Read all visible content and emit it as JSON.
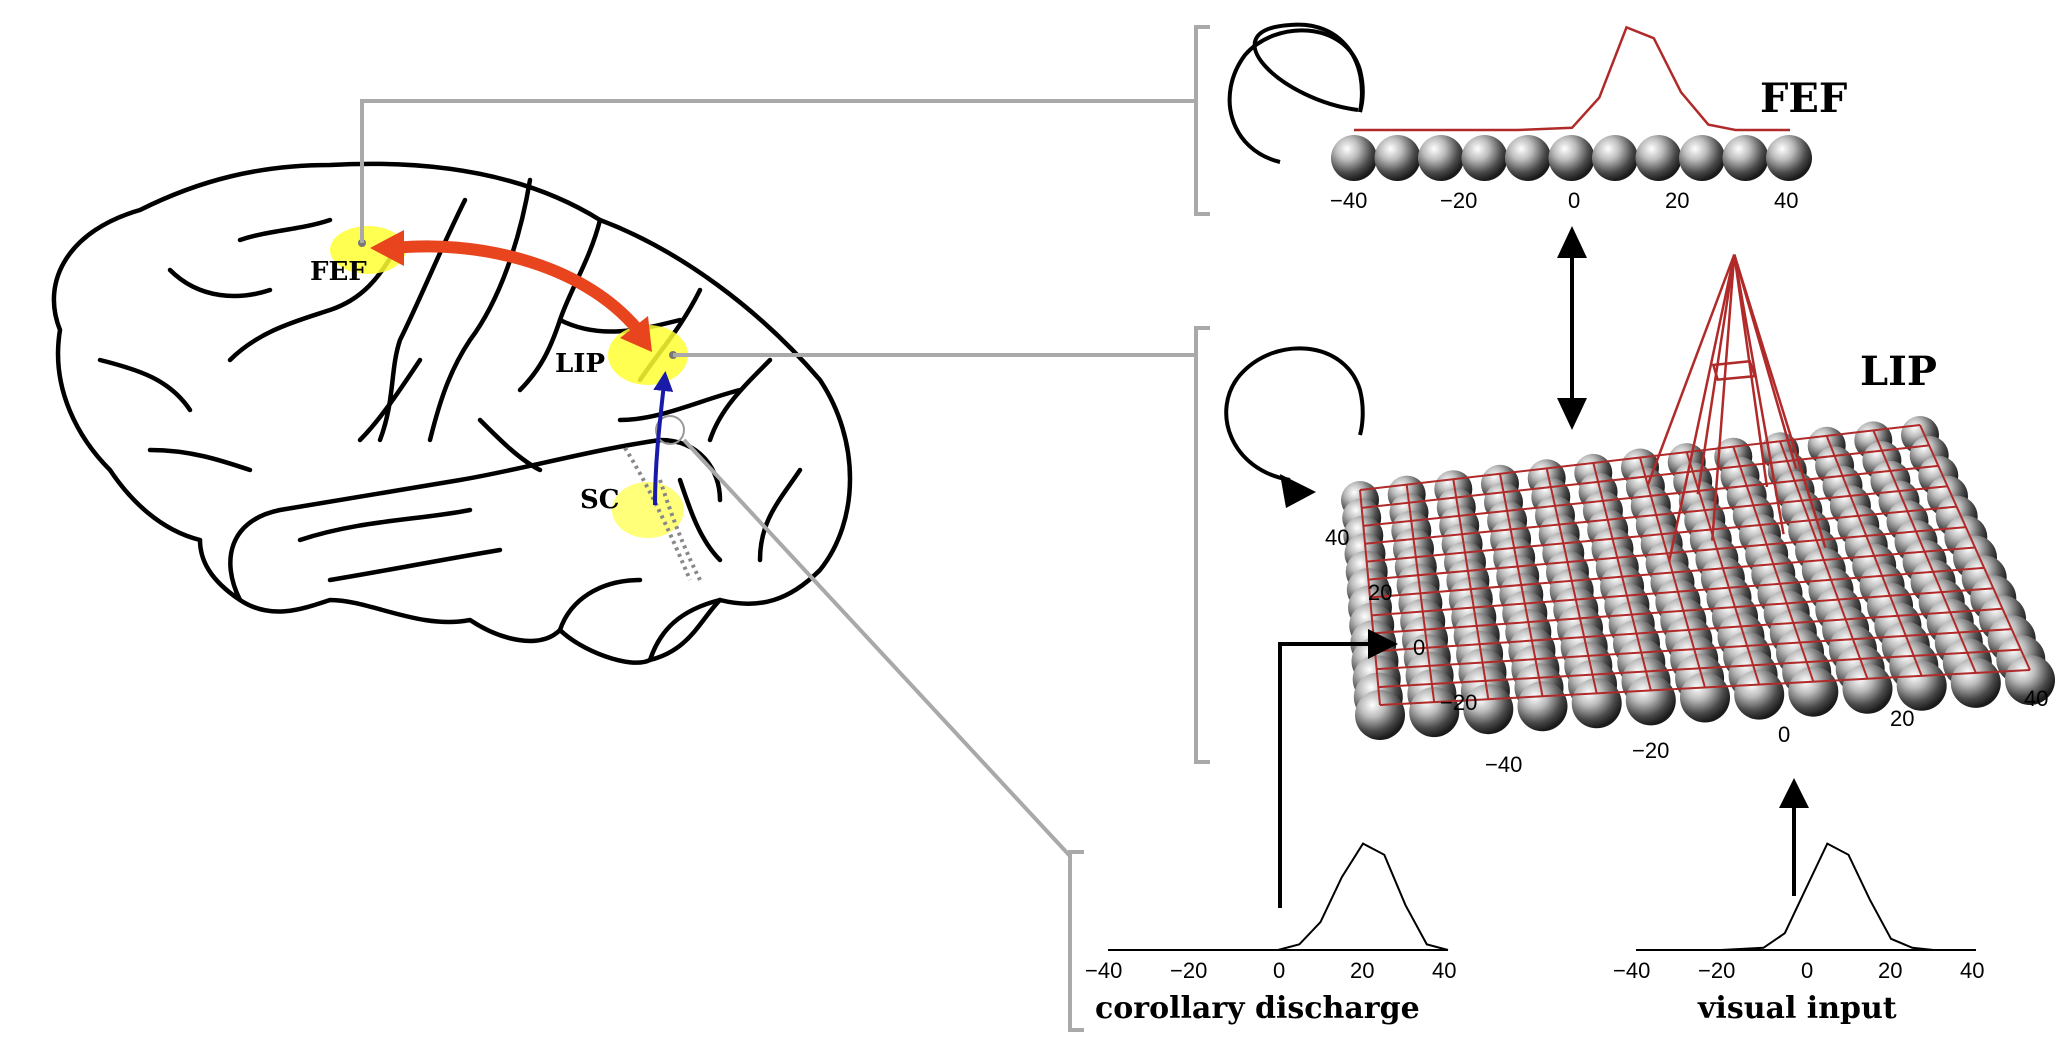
{
  "brain": {
    "regions": [
      {
        "label": "FEF"
      },
      {
        "label": "LIP"
      },
      {
        "label": "SC"
      }
    ],
    "highlight_color": "#ffff33",
    "fef_lip_arrow_color": "#e8451e",
    "sc_lip_arrow_color": "#1a1aa8"
  },
  "panels": {
    "fef": {
      "title": "FEF",
      "ticks": [
        "−40",
        "−20",
        "0",
        "20",
        "40"
      ]
    },
    "lip": {
      "title": "LIP",
      "x_ticks": [
        "−40",
        "−20",
        "0",
        "20",
        "40"
      ],
      "y_ticks": [
        "−40",
        "−20",
        "0",
        "20",
        "40"
      ],
      "surface_color": "#b02a2a"
    },
    "corollary": {
      "caption": "corollary discharge",
      "ticks": [
        "−40",
        "−20",
        "0",
        "20",
        "40"
      ]
    },
    "visual": {
      "caption": "visual input",
      "ticks": [
        "−40",
        "−20",
        "0",
        "20",
        "40"
      ]
    }
  },
  "chart_data": [
    {
      "type": "line",
      "name": "fef-activity",
      "x": [
        -40,
        -30,
        -20,
        -10,
        0,
        5,
        10,
        15,
        20,
        25,
        30,
        40
      ],
      "y": [
        0,
        0,
        0,
        0,
        0.02,
        0.3,
        0.95,
        0.85,
        0.35,
        0.05,
        0,
        0
      ]
    },
    {
      "type": "line",
      "name": "corollary-discharge",
      "x": [
        -40,
        -30,
        -20,
        -10,
        0,
        5,
        10,
        15,
        20,
        25,
        30,
        35,
        40
      ],
      "y": [
        0,
        0,
        0,
        0,
        0,
        0.05,
        0.25,
        0.65,
        0.95,
        0.85,
        0.4,
        0.05,
        0
      ]
    },
    {
      "type": "line",
      "name": "visual-input",
      "x": [
        -40,
        -30,
        -20,
        -10,
        -5,
        0,
        5,
        10,
        15,
        20,
        25,
        30,
        40
      ],
      "y": [
        0,
        0,
        0,
        0.02,
        0.15,
        0.55,
        0.95,
        0.85,
        0.45,
        0.1,
        0.02,
        0,
        0
      ]
    }
  ]
}
